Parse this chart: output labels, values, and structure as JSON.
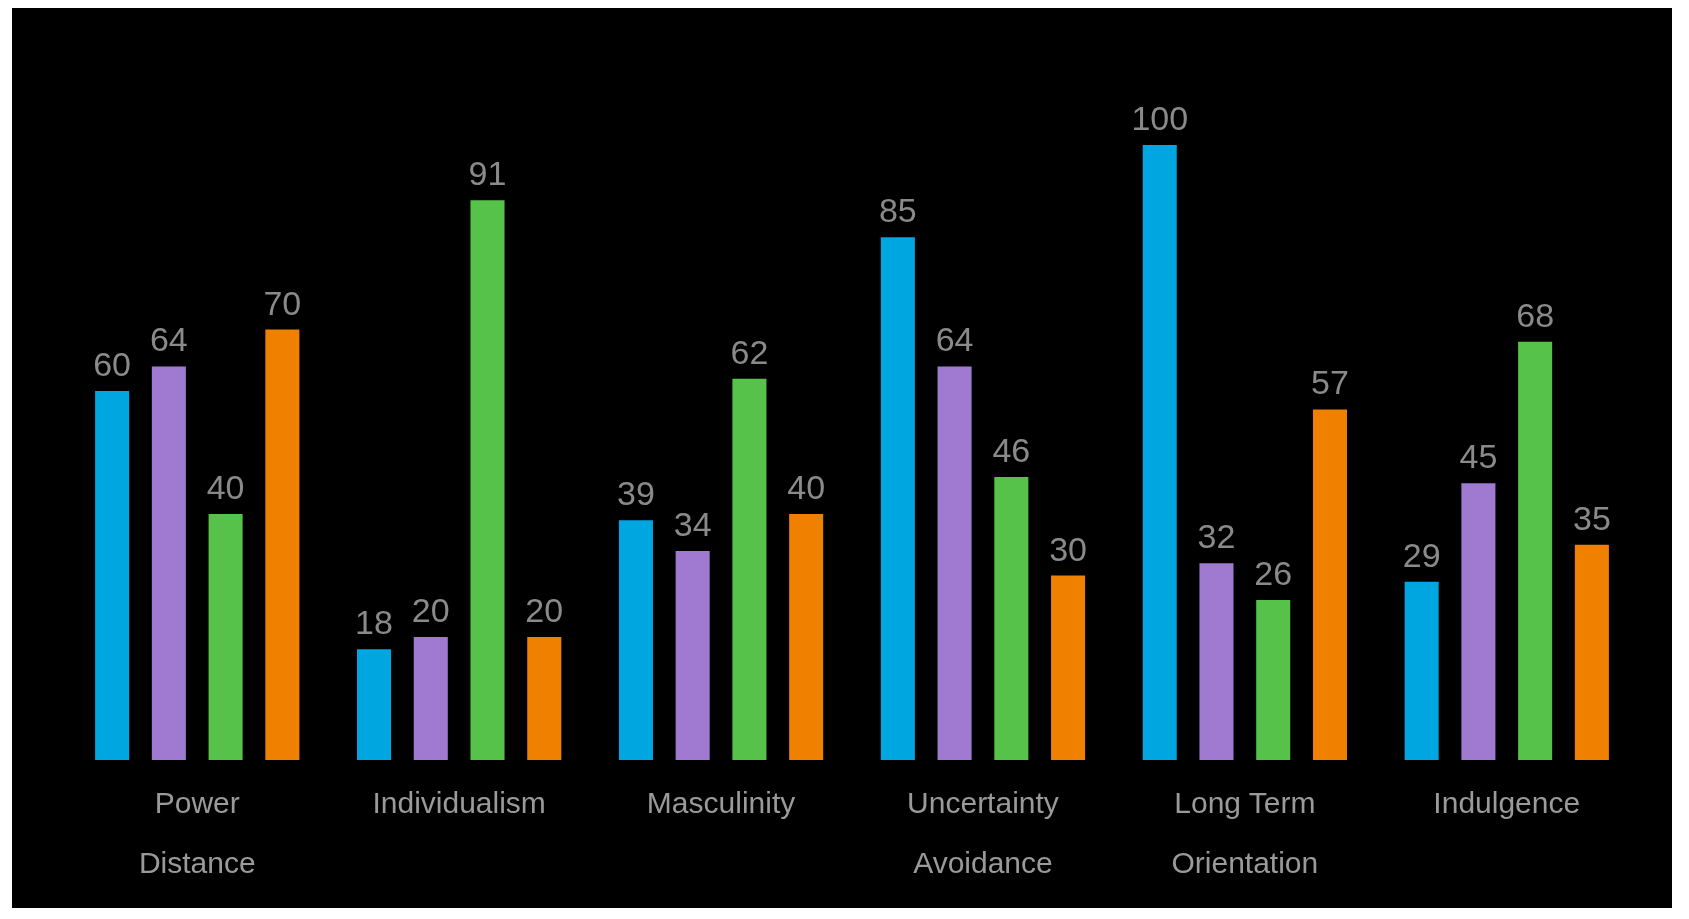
{
  "chart_data": {
    "type": "bar",
    "categories": [
      "Power Distance",
      "Individualism",
      "Masculinity",
      "Uncertainty Avoidance",
      "Long Term Orientation",
      "Indulgence"
    ],
    "series": [
      {
        "color": "#00a6e0",
        "values": [
          60,
          18,
          39,
          85,
          100,
          29
        ]
      },
      {
        "color": "#a07ad0",
        "values": [
          64,
          20,
          34,
          64,
          32,
          45
        ]
      },
      {
        "color": "#57c24a",
        "values": [
          40,
          91,
          62,
          46,
          26,
          68
        ]
      },
      {
        "color": "#f08000",
        "values": [
          70,
          20,
          40,
          30,
          57,
          35
        ]
      }
    ],
    "data_labels": true
  }
}
